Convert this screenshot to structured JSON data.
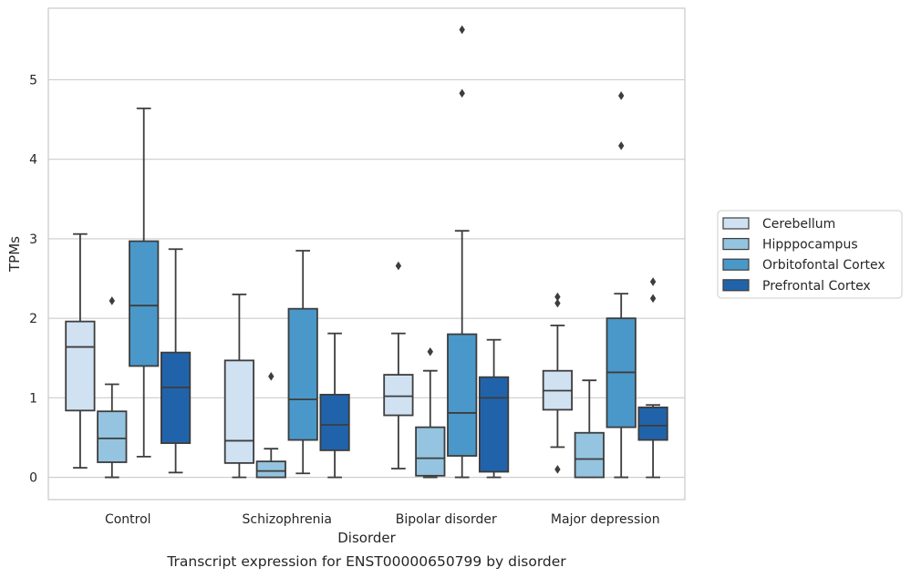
{
  "chart_data": {
    "type": "box",
    "caption": "Transcript expression for ENST00000650799 by disorder",
    "xlabel": "Disorder",
    "ylabel": "TPMs",
    "ylim": [
      -0.28,
      5.9
    ],
    "yticks": [
      0,
      1,
      2,
      3,
      4,
      5
    ],
    "categories": [
      "Control",
      "Schizophrenia",
      "Bipolar disorder",
      "Major depression"
    ],
    "grid": "horizontal",
    "legend_position": "right",
    "series": [
      {
        "name": "Cerebellum",
        "color": "#d0e1f2",
        "boxes": [
          {
            "whislo": 0.12,
            "q1": 0.84,
            "med": 1.64,
            "q3": 1.96,
            "whishi": 3.06,
            "fliers": []
          },
          {
            "whislo": 0.0,
            "q1": 0.18,
            "med": 0.46,
            "q3": 1.47,
            "whishi": 2.3,
            "fliers": []
          },
          {
            "whislo": 0.11,
            "q1": 0.78,
            "med": 1.02,
            "q3": 1.29,
            "whishi": 1.81,
            "fliers": [
              2.66
            ]
          },
          {
            "whislo": 0.38,
            "q1": 0.85,
            "med": 1.09,
            "q3": 1.34,
            "whishi": 1.91,
            "fliers": [
              0.1,
              2.19,
              2.27
            ]
          }
        ]
      },
      {
        "name": "Hipppocampus",
        "color": "#94c4df",
        "boxes": [
          {
            "whislo": 0.0,
            "q1": 0.19,
            "med": 0.49,
            "q3": 0.83,
            "whishi": 1.17,
            "fliers": [
              2.22
            ]
          },
          {
            "whislo": 0.0,
            "q1": 0.0,
            "med": 0.08,
            "q3": 0.2,
            "whishi": 0.36,
            "fliers": [
              1.27
            ]
          },
          {
            "whislo": 0.0,
            "q1": 0.02,
            "med": 0.24,
            "q3": 0.63,
            "whishi": 1.34,
            "fliers": [
              1.58
            ]
          },
          {
            "whislo": 0.0,
            "q1": 0.0,
            "med": 0.23,
            "q3": 0.56,
            "whishi": 1.22,
            "fliers": []
          }
        ]
      },
      {
        "name": "Orbitofontal Cortex",
        "color": "#4a98c9",
        "boxes": [
          {
            "whislo": 0.26,
            "q1": 1.4,
            "med": 2.16,
            "q3": 2.97,
            "whishi": 4.64,
            "fliers": []
          },
          {
            "whislo": 0.05,
            "q1": 0.47,
            "med": 0.98,
            "q3": 2.12,
            "whishi": 2.85,
            "fliers": []
          },
          {
            "whislo": 0.0,
            "q1": 0.27,
            "med": 0.81,
            "q3": 1.8,
            "whishi": 3.1,
            "fliers": [
              4.83,
              5.63
            ]
          },
          {
            "whislo": 0.0,
            "q1": 0.63,
            "med": 1.32,
            "q3": 2.0,
            "whishi": 2.31,
            "fliers": [
              4.17,
              4.8
            ]
          }
        ]
      },
      {
        "name": "Prefrontal Cortex",
        "color": "#2163aa",
        "boxes": [
          {
            "whislo": 0.06,
            "q1": 0.43,
            "med": 1.13,
            "q3": 1.57,
            "whishi": 2.87,
            "fliers": []
          },
          {
            "whislo": 0.0,
            "q1": 0.34,
            "med": 0.66,
            "q3": 1.04,
            "whishi": 1.81,
            "fliers": []
          },
          {
            "whislo": 0.0,
            "q1": 0.07,
            "med": 1.0,
            "q3": 1.26,
            "whishi": 1.73,
            "fliers": []
          },
          {
            "whislo": 0.0,
            "q1": 0.47,
            "med": 0.65,
            "q3": 0.88,
            "whishi": 0.91,
            "fliers": [
              2.25,
              2.46
            ]
          }
        ]
      }
    ]
  }
}
